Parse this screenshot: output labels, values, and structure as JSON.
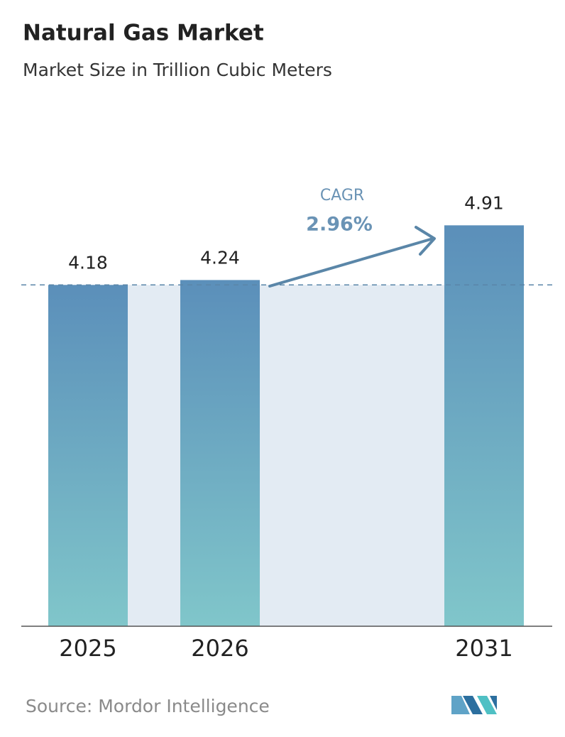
{
  "chart_data": {
    "type": "bar",
    "title": "Natural Gas Market",
    "subtitle": "Market Size in Trillion Cubic Meters",
    "categories": [
      "2025",
      "2026",
      "2031"
    ],
    "values": [
      4.18,
      4.24,
      4.91
    ],
    "annotation": {
      "label": "CAGR",
      "text": "2.96%"
    },
    "source": "Source: Mordor Intelligence"
  }
}
